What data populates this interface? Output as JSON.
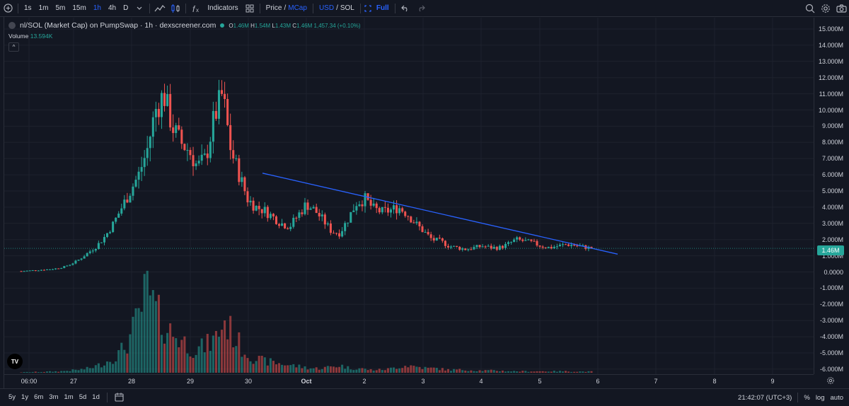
{
  "toolbar": {
    "add_icon": "plus-circle-icon",
    "intervals": [
      "1s",
      "1m",
      "5m",
      "15m",
      "1h",
      "4h",
      "D"
    ],
    "active_interval": "1h",
    "indicators_label": "Indicators",
    "price_label": "Price",
    "slash": "/",
    "mcap_label": "MCap",
    "usd_label": "USD",
    "sol_label": "SOL",
    "full_label": "Full",
    "accent": "#2962ff"
  },
  "legend": {
    "title": "nl/SOL (Market Cap) on PumpSwap · 1h · dexscreener.com",
    "o_key": "O",
    "o": "1.46M",
    "h_key": "H",
    "h": "1.54M",
    "l_key": "L",
    "l": "1.43M",
    "c_key": "C",
    "c": "1.46M",
    "change": "1,457.34 (+0.10%)",
    "volume_label": "Volume",
    "volume_value": "13.594K",
    "collapse_glyph": "^"
  },
  "last_price": "1.46M",
  "logo_text": "TV",
  "colors": {
    "up": "#26a69a",
    "down": "#ef5350",
    "trendline": "#2962ff",
    "background": "#131722"
  },
  "y_axis": {
    "labels": [
      "15.000M",
      "14.000M",
      "13.000M",
      "12.000M",
      "11.000M",
      "10.000M",
      "9.000M",
      "8.000M",
      "7.000M",
      "6.000M",
      "5.000M",
      "4.000M",
      "3.000M",
      "2.000M",
      "1.000M",
      "0.0000",
      "-1.000M",
      "-2.000M",
      "-3.000M",
      "-4.000M",
      "-5.000M",
      "-6.000M"
    ],
    "values": [
      15,
      14,
      13,
      12,
      11,
      10,
      9,
      8,
      7,
      6,
      5,
      4,
      3,
      2,
      1,
      0,
      -1,
      -2,
      -3,
      -4,
      -5,
      -6
    ]
  },
  "x_axis": {
    "labels": [
      "06:00",
      "27",
      "28",
      "29",
      "30",
      "Oct",
      "2",
      "3",
      "4",
      "5",
      "6",
      "7",
      "8",
      "9"
    ],
    "bold": "Oct"
  },
  "chart_data": {
    "type": "candlestick",
    "unit": "M",
    "ylim": [
      -6.3,
      15.5
    ],
    "x_ticks": [
      "06:00",
      "27",
      "28",
      "29",
      "30",
      "Oct",
      "2",
      "3",
      "4",
      "5",
      "6",
      "7",
      "8",
      "9"
    ],
    "price_path": [
      0.05,
      0.08,
      0.12,
      0.15,
      0.2,
      0.3,
      0.5,
      0.8,
      1.2,
      1.6,
      2.2,
      3,
      4,
      5,
      6,
      7.5,
      10,
      11,
      9,
      8,
      7.5,
      6.5,
      7,
      9.5,
      11,
      7.5,
      6,
      4.5,
      4,
      3.8,
      3.4,
      3,
      2.8,
      3.5,
      4.2,
      3.8,
      3.2,
      2.5,
      2.4,
      3.3,
      4.3,
      4.5,
      3.9,
      3.7,
      3.8,
      4,
      3.6,
      3,
      2.5,
      2,
      1.9,
      1.6,
      1.5,
      1.4,
      1.5,
      1.6,
      1.5,
      1.5,
      1.7,
      2,
      1.9,
      1.8,
      1.6,
      1.5,
      1.6,
      1.7,
      1.65,
      1.55,
      1.46
    ],
    "volume_path": [
      0.3,
      0.5,
      0.6,
      0.8,
      1,
      1.5,
      2,
      3,
      5,
      8,
      12,
      20,
      35,
      55,
      40,
      30,
      25,
      20,
      15,
      18,
      22,
      35,
      25,
      15,
      10,
      8,
      7,
      6,
      5,
      4,
      3,
      3,
      4,
      5,
      3,
      3,
      2,
      2,
      2.5,
      4,
      5,
      4,
      3,
      3,
      2,
      2,
      2,
      1.5,
      1.5,
      1.5,
      1.2,
      1,
      1,
      1,
      1,
      1,
      1,
      0.9,
      0.8,
      0.8
    ],
    "trendline": {
      "start": {
        "x": "30",
        "y": 6.1
      },
      "end": {
        "x": "6",
        "y": 1.1
      }
    },
    "last": {
      "open": "1.46M",
      "high": "1.54M",
      "low": "1.43M",
      "close": "1.46M",
      "change": "1,457.34 (+0.10%)"
    },
    "volume": "13.594K"
  },
  "bottombar": {
    "ranges": [
      "5y",
      "1y",
      "6m",
      "3m",
      "1m",
      "5d",
      "1d"
    ],
    "time": "21:42:07 (UTC+3)",
    "percent": "%",
    "log": "log",
    "auto": "auto"
  }
}
